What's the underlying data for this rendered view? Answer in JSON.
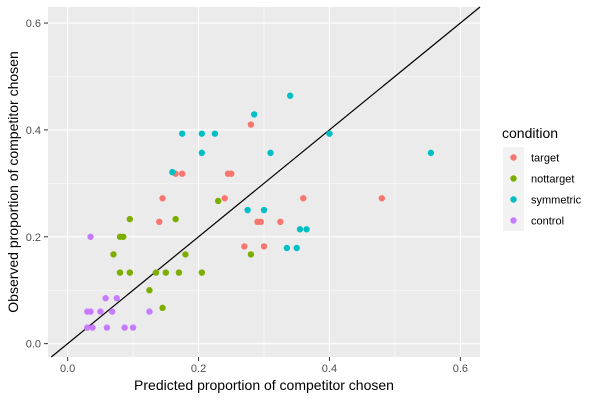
{
  "chart_data": {
    "type": "scatter",
    "xlabel": "Predicted proportion of competitor chosen",
    "ylabel": "Observed proportion of competitor chosen",
    "xlim": [
      -0.03,
      0.63
    ],
    "ylim": [
      -0.025,
      0.63
    ],
    "xticks": [
      "0.0",
      "0.2",
      "0.4",
      "0.6"
    ],
    "yticks": [
      "0.0",
      "0.2",
      "0.4",
      "0.6"
    ],
    "grid": true,
    "legend_title": "condition",
    "legend_position": "right",
    "reference_line": "y = x",
    "series": [
      {
        "name": "target",
        "color": "#F8766D",
        "points": [
          [
            0.145,
            0.272
          ],
          [
            0.14,
            0.228
          ],
          [
            0.165,
            0.318
          ],
          [
            0.175,
            0.318
          ],
          [
            0.245,
            0.318
          ],
          [
            0.25,
            0.318
          ],
          [
            0.24,
            0.272
          ],
          [
            0.28,
            0.41
          ],
          [
            0.27,
            0.182
          ],
          [
            0.29,
            0.228
          ],
          [
            0.295,
            0.228
          ],
          [
            0.3,
            0.182
          ],
          [
            0.325,
            0.228
          ],
          [
            0.36,
            0.272
          ],
          [
            0.48,
            0.272
          ]
        ]
      },
      {
        "name": "nottarget",
        "color": "#7CAE00",
        "points": [
          [
            0.07,
            0.167
          ],
          [
            0.08,
            0.2
          ],
          [
            0.085,
            0.2
          ],
          [
            0.095,
            0.233
          ],
          [
            0.08,
            0.133
          ],
          [
            0.095,
            0.133
          ],
          [
            0.135,
            0.133
          ],
          [
            0.15,
            0.133
          ],
          [
            0.165,
            0.233
          ],
          [
            0.17,
            0.133
          ],
          [
            0.18,
            0.167
          ],
          [
            0.205,
            0.133
          ],
          [
            0.23,
            0.267
          ],
          [
            0.28,
            0.167
          ],
          [
            0.125,
            0.1
          ],
          [
            0.145,
            0.067
          ]
        ]
      },
      {
        "name": "symmetric",
        "color": "#00BFC4",
        "points": [
          [
            0.16,
            0.321
          ],
          [
            0.175,
            0.393
          ],
          [
            0.205,
            0.393
          ],
          [
            0.205,
            0.357
          ],
          [
            0.225,
            0.393
          ],
          [
            0.285,
            0.429
          ],
          [
            0.31,
            0.357
          ],
          [
            0.34,
            0.464
          ],
          [
            0.4,
            0.393
          ],
          [
            0.555,
            0.357
          ],
          [
            0.275,
            0.25
          ],
          [
            0.3,
            0.25
          ],
          [
            0.335,
            0.179
          ],
          [
            0.35,
            0.179
          ],
          [
            0.355,
            0.214
          ],
          [
            0.365,
            0.214
          ]
        ]
      },
      {
        "name": "control",
        "color": "#C77CFF",
        "points": [
          [
            0.035,
            0.2
          ],
          [
            0.03,
            0.03
          ],
          [
            0.038,
            0.03
          ],
          [
            0.035,
            0.06
          ],
          [
            0.03,
            0.06
          ],
          [
            0.05,
            0.06
          ],
          [
            0.058,
            0.085
          ],
          [
            0.06,
            0.03
          ],
          [
            0.068,
            0.06
          ],
          [
            0.075,
            0.085
          ],
          [
            0.087,
            0.03
          ],
          [
            0.1,
            0.03
          ],
          [
            0.125,
            0.06
          ]
        ]
      }
    ]
  }
}
